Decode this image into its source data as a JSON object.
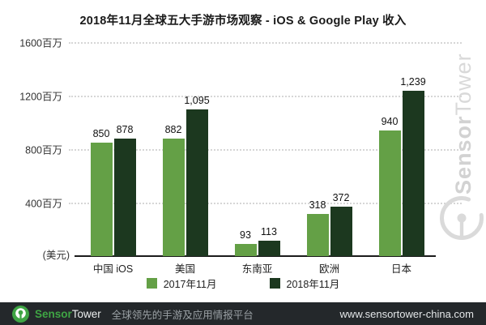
{
  "title": "2018年11月全球五大手游市场观察 - iOS & Google Play 收入",
  "chart_data": {
    "type": "bar",
    "title": "2018年11月全球五大手游市场观察 - iOS & Google Play 收入",
    "categories": [
      "中国 iOS",
      "美国",
      "东南亚",
      "欧洲",
      "日本"
    ],
    "series": [
      {
        "name": "2017年11月",
        "color": "#64a046",
        "values": [
          850,
          882,
          93,
          318,
          940
        ],
        "value_labels": [
          "850",
          "882",
          "93",
          "318",
          "940"
        ]
      },
      {
        "name": "2018年11月",
        "color": "#1c381f",
        "values": [
          878,
          1095,
          113,
          372,
          1239
        ],
        "value_labels": [
          "878",
          "1,095",
          "113",
          "372",
          "1,239"
        ]
      }
    ],
    "unit_label": "(美元)",
    "yticks": [
      {
        "value": 1600,
        "label": "1600百万"
      },
      {
        "value": 1200,
        "label": "1200百万"
      },
      {
        "value": 800,
        "label": "800百万"
      },
      {
        "value": 400,
        "label": "400百万"
      }
    ],
    "ylim": [
      0,
      1600
    ],
    "grid": "dotted-horizontal",
    "legend_position": "bottom-center"
  },
  "watermark": {
    "brand_bold": "Sensor",
    "brand_regular": "Tower",
    "color": "#d9d9d9"
  },
  "footer": {
    "brand_bold": "Sensor",
    "brand_regular": "Tower",
    "tagline": "全球领先的手游及应用情报平台",
    "url": "www.sensortower-china.com",
    "background": "#24282b",
    "accent_green": "#3fa544"
  }
}
